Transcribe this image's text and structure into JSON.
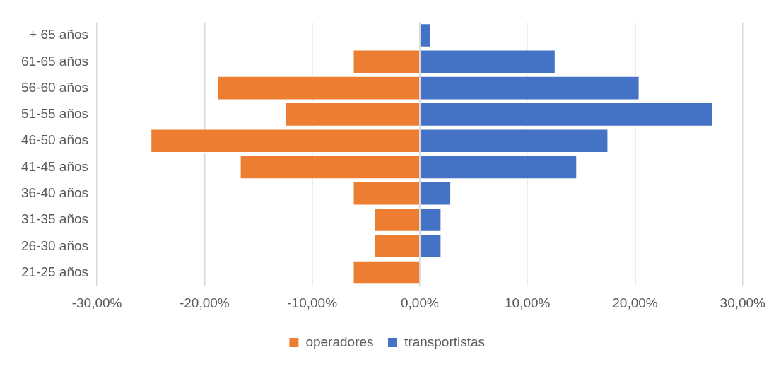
{
  "chart_data": {
    "type": "bar",
    "orientation": "horizontal",
    "stacked": true,
    "categories": [
      "+ 65 años",
      "61-65 años",
      "56-60 años",
      "51-55 años",
      "46-50 años",
      "41-45 años",
      "36-40 años",
      "31-35 años",
      "26-30 años",
      "21-25 años"
    ],
    "series": [
      {
        "name": "operadores",
        "color": "#ed7d31",
        "values": [
          null,
          -6.2,
          -18.8,
          -12.5,
          -25.0,
          -16.7,
          -6.2,
          -4.2,
          -4.2,
          -6.2
        ]
      },
      {
        "name": "transportistas",
        "color": "#4472c4",
        "values": [
          1.0,
          12.6,
          20.4,
          27.2,
          17.5,
          14.6,
          2.9,
          2.0,
          2.0,
          null
        ]
      }
    ],
    "xlim": [
      -30,
      30
    ],
    "xticks": [
      {
        "value": -30,
        "label": "-30,00%"
      },
      {
        "value": -20,
        "label": "-20,00%"
      },
      {
        "value": -10,
        "label": "-10,00%"
      },
      {
        "value": 0,
        "label": "0,00%"
      },
      {
        "value": 10,
        "label": "10,00%"
      },
      {
        "value": 20,
        "label": "20,00%"
      },
      {
        "value": 30,
        "label": "30,00%"
      }
    ],
    "grid": "x",
    "legend": "bottom"
  }
}
